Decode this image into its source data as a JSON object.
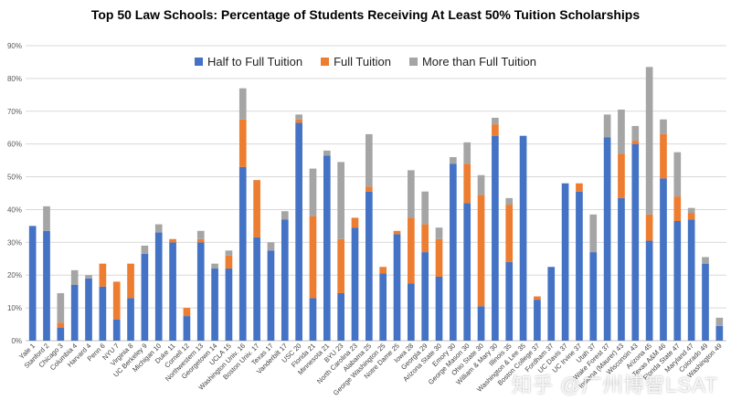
{
  "chart_data": {
    "type": "bar",
    "stacked": true,
    "title": "Top 50 Law Schools: Percentage of Students Receiving At Least 50% Tuition Scholarships",
    "xlabel": "",
    "ylabel": "",
    "ylim": [
      0,
      90
    ],
    "yticks": [
      "0%",
      "10%",
      "20%",
      "30%",
      "40%",
      "50%",
      "60%",
      "70%",
      "80%",
      "90%"
    ],
    "grid": true,
    "legend_position": "top",
    "categories": [
      "Yale 1",
      "Stanford 2",
      "Chicago 3",
      "Columbia 4",
      "Harvard 4",
      "Penn 6",
      "NYU 7",
      "Virginia 8",
      "UC Berkeley 9",
      "Michigan 10",
      "Duke 11",
      "Cornell 12",
      "Northwestern 13",
      "Georgetown 14",
      "UCLA 15",
      "Washington Univ. 16",
      "Boston Univ. 17",
      "Texas 17",
      "Vanderbilt 17",
      "USC 20",
      "Florida 21",
      "Minnesota 21",
      "BYU 23",
      "North Carolina 23",
      "Alabama 25",
      "George Washington 25",
      "Notre Dame 25",
      "Iowa 28",
      "Georgia 29",
      "Arizona State 30",
      "Emory 30",
      "George Mason 30",
      "Ohio State 30",
      "William & Mary 30",
      "Illinois 35",
      "Washington & Lee 35",
      "Boston College 37",
      "Fordham 37",
      "UC Davis 37",
      "UC Irvine 37",
      "Utah 37",
      "Wake Forest 37",
      "Indiana (Maurer) 43",
      "Wisconsin 43",
      "Arizona 45",
      "Texas A&M 46",
      "Florida State 47",
      "Maryland 47",
      "Colorado 49",
      "Washington 49"
    ],
    "series": [
      {
        "name": "Half to Full Tuition",
        "color": "#4472C4",
        "values": [
          35,
          33.5,
          4,
          17,
          19,
          16.5,
          6.5,
          13,
          26.5,
          33,
          30,
          7.5,
          30,
          22,
          22,
          53,
          31.5,
          27.5,
          37,
          66.5,
          13,
          56.5,
          14.5,
          34.5,
          45.5,
          20.5,
          32.5,
          17.5,
          27,
          19.5,
          54,
          42,
          10.5,
          62.5,
          24,
          62.5,
          12.5,
          22.5,
          48,
          45.5,
          27,
          62,
          43.5,
          60,
          30.5,
          49.5,
          36.5,
          37,
          23.5,
          4.5
        ]
      },
      {
        "name": "Full Tuition",
        "color": "#ED7D31",
        "values": [
          0,
          0,
          1.5,
          0,
          0,
          7,
          11.5,
          10.5,
          0,
          0,
          1,
          2.5,
          1,
          0,
          4,
          14.5,
          17.5,
          0,
          0,
          1,
          25,
          0,
          16.5,
          3,
          1.5,
          2,
          1,
          20,
          8.5,
          11.5,
          0,
          12,
          34,
          3.5,
          17.5,
          0,
          1,
          0,
          0,
          2.5,
          0,
          0,
          13.5,
          1,
          8,
          13.5,
          7.5,
          2,
          0,
          0
        ]
      },
      {
        "name": "More than Full Tuition",
        "color": "#A5A5A5",
        "values": [
          0,
          7.5,
          9,
          4.5,
          1,
          0,
          0,
          0,
          2.5,
          2.5,
          0,
          0,
          2.5,
          1.5,
          1.5,
          9.5,
          0,
          2.5,
          2.5,
          1.5,
          14.5,
          1.5,
          23.5,
          0,
          16,
          0,
          0,
          14.5,
          10,
          3.5,
          2,
          6.5,
          6,
          2,
          2,
          0,
          0,
          0,
          0,
          0,
          11.5,
          7,
          13.5,
          4.5,
          45,
          4.5,
          13.5,
          1.5,
          2,
          2.5
        ]
      }
    ]
  },
  "watermark": "知乎 @广州博智LSAT"
}
